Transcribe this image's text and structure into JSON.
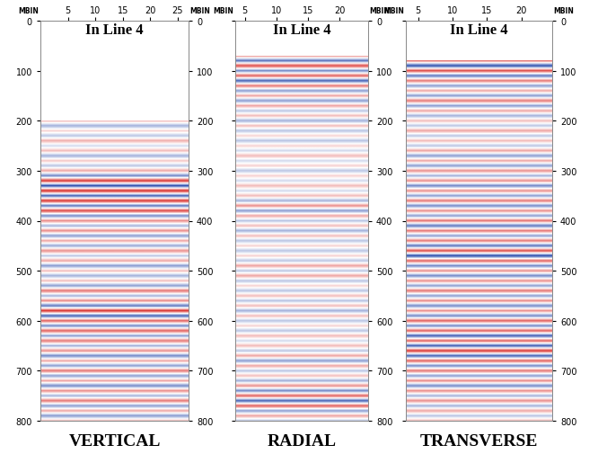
{
  "chart_data": [
    {
      "type": "heatmap",
      "title": "In Line 4",
      "xlabel": "VERTICAL",
      "axis_label": "MBIN",
      "xlim": [
        0,
        27
      ],
      "xticks": [
        5,
        10,
        15,
        20,
        25
      ],
      "ylim": [
        800,
        0
      ],
      "yticks": [
        0,
        100,
        200,
        300,
        400,
        500,
        600,
        700,
        800
      ],
      "y2lim": [
        800,
        0
      ],
      "y2ticks": [
        0,
        100,
        200,
        300,
        400,
        500,
        600,
        700,
        800
      ],
      "colors": [
        "#1a3fa8",
        "#ffffff",
        "#d8201c"
      ],
      "zlim": [
        -1,
        1
      ],
      "t": [
        0,
        10,
        20,
        30,
        40,
        50,
        60,
        70,
        80,
        90,
        100,
        110,
        120,
        130,
        140,
        150,
        160,
        170,
        180,
        190,
        200,
        210,
        220,
        230,
        240,
        250,
        260,
        270,
        280,
        290,
        300,
        310,
        320,
        330,
        340,
        350,
        360,
        370,
        380,
        390,
        400,
        410,
        420,
        430,
        440,
        450,
        460,
        470,
        480,
        490,
        500,
        510,
        520,
        530,
        540,
        550,
        560,
        570,
        580,
        590,
        600,
        610,
        620,
        630,
        640,
        650,
        660,
        670,
        680,
        690,
        700,
        710,
        720,
        730,
        740,
        750,
        760,
        770,
        780,
        790,
        800
      ],
      "amplitude": [
        null,
        null,
        null,
        null,
        null,
        null,
        null,
        null,
        null,
        null,
        null,
        null,
        null,
        null,
        null,
        null,
        null,
        null,
        null,
        null,
        0.3,
        -0.4,
        0.2,
        -0.3,
        0.35,
        -0.2,
        0.3,
        -0.4,
        0.25,
        -0.3,
        0.4,
        -0.6,
        0.9,
        -0.9,
        0.95,
        -0.8,
        0.9,
        -0.7,
        0.8,
        -0.6,
        0.5,
        -0.4,
        0.5,
        -0.5,
        0.4,
        -0.45,
        0.5,
        -0.3,
        0.4,
        -0.5,
        0.3,
        -0.4,
        0.3,
        -0.5,
        0.6,
        -0.4,
        0.5,
        -0.7,
        0.9,
        -0.8,
        0.7,
        -0.6,
        0.7,
        -0.5,
        0.6,
        -0.4,
        0.5,
        -0.6,
        0.4,
        -0.5,
        0.6,
        -0.5,
        0.4,
        -0.6,
        0.5,
        -0.4,
        0.6,
        -0.5,
        0.4,
        -0.5,
        0.3
      ]
    },
    {
      "type": "heatmap",
      "title": "In Line 4",
      "xlabel": "RADIAL",
      "axis_label": "MBIN",
      "xlim": [
        3.5,
        24.5
      ],
      "xticks": [
        5,
        10,
        15,
        20
      ],
      "ylim": [
        800,
        0
      ],
      "y2lim": [
        800,
        0
      ],
      "y2ticks": [
        0,
        100,
        200,
        300,
        400,
        500,
        600,
        700,
        800
      ],
      "colors": [
        "#1a3fa8",
        "#ffffff",
        "#d8201c"
      ],
      "zlim": [
        -1,
        1
      ],
      "t": [
        0,
        10,
        20,
        30,
        40,
        50,
        60,
        70,
        80,
        90,
        100,
        110,
        120,
        130,
        140,
        150,
        160,
        170,
        180,
        190,
        200,
        210,
        220,
        230,
        240,
        250,
        260,
        270,
        280,
        290,
        300,
        310,
        320,
        330,
        340,
        350,
        360,
        370,
        380,
        390,
        400,
        410,
        420,
        430,
        440,
        450,
        460,
        470,
        480,
        490,
        500,
        510,
        520,
        530,
        540,
        550,
        560,
        570,
        580,
        590,
        600,
        610,
        620,
        630,
        640,
        650,
        660,
        670,
        680,
        690,
        700,
        710,
        720,
        730,
        740,
        750,
        760,
        770,
        780,
        790,
        800
      ],
      "amplitude": [
        null,
        null,
        null,
        null,
        null,
        null,
        null,
        0.5,
        -0.7,
        0.8,
        -0.6,
        0.7,
        -0.8,
        0.6,
        -0.5,
        0.4,
        -0.5,
        0.4,
        -0.3,
        0.3,
        -0.4,
        0.3,
        -0.3,
        0.2,
        -0.3,
        0.2,
        -0.2,
        0.3,
        -0.2,
        0.2,
        -0.3,
        0.2,
        -0.2,
        0.3,
        -0.2,
        0.3,
        -0.4,
        0.5,
        -0.5,
        0.4,
        -0.3,
        0.3,
        -0.4,
        0.3,
        -0.3,
        0.2,
        -0.3,
        0.2,
        -0.3,
        0.4,
        -0.3,
        0.4,
        -0.3,
        0.2,
        -0.3,
        0.3,
        -0.3,
        0.3,
        -0.4,
        0.3,
        -0.3,
        0.2,
        -0.3,
        0.3,
        -0.2,
        0.3,
        -0.3,
        0.4,
        -0.5,
        0.4,
        -0.3,
        0.3,
        -0.4,
        0.5,
        -0.6,
        0.7,
        -0.8,
        0.7,
        -0.5,
        0.4,
        -0.3
      ]
    },
    {
      "type": "heatmap",
      "title": "In Line 4",
      "xlabel": "TRANSVERSE",
      "axis_label": "MBIN",
      "xlim": [
        3.2,
        24.5
      ],
      "xticks": [
        5,
        10,
        15,
        20
      ],
      "ylim": [
        800,
        0
      ],
      "y2lim": [
        800,
        0
      ],
      "y2ticks": [
        0,
        100,
        200,
        300,
        400,
        500,
        600,
        700,
        800
      ],
      "colors": [
        "#1a3fa8",
        "#ffffff",
        "#d8201c"
      ],
      "zlim": [
        -1,
        1
      ],
      "t": [
        0,
        10,
        20,
        30,
        40,
        50,
        60,
        70,
        80,
        90,
        100,
        110,
        120,
        130,
        140,
        150,
        160,
        170,
        180,
        190,
        200,
        210,
        220,
        230,
        240,
        250,
        260,
        270,
        280,
        290,
        300,
        310,
        320,
        330,
        340,
        350,
        360,
        370,
        380,
        390,
        400,
        410,
        420,
        430,
        440,
        450,
        460,
        470,
        480,
        490,
        500,
        510,
        520,
        530,
        540,
        550,
        560,
        570,
        580,
        590,
        600,
        610,
        620,
        630,
        640,
        650,
        660,
        670,
        680,
        690,
        700,
        710,
        720,
        730,
        740,
        750,
        760,
        770,
        780,
        790,
        800
      ],
      "amplitude": [
        null,
        null,
        null,
        null,
        null,
        null,
        null,
        null,
        0.6,
        -0.9,
        0.8,
        -0.7,
        0.6,
        -0.5,
        0.4,
        -0.5,
        0.6,
        -0.5,
        0.4,
        -0.4,
        0.3,
        -0.3,
        0.4,
        -0.3,
        0.3,
        -0.3,
        0.4,
        -0.5,
        0.4,
        -0.5,
        0.5,
        -0.4,
        0.5,
        -0.6,
        0.5,
        -0.5,
        0.6,
        -0.6,
        0.5,
        -0.5,
        0.6,
        -0.7,
        0.6,
        -0.5,
        0.6,
        -0.7,
        0.8,
        -0.9,
        0.7,
        -0.6,
        0.5,
        -0.6,
        0.5,
        -0.5,
        0.6,
        -0.5,
        0.5,
        -0.6,
        0.5,
        -0.6,
        0.7,
        -0.6,
        0.7,
        -0.8,
        0.7,
        -0.8,
        0.9,
        -0.8,
        0.7,
        -0.6,
        0.6,
        -0.5,
        0.5,
        -0.6,
        0.5,
        -0.4,
        0.5,
        -0.4,
        0.4,
        -0.3,
        0.3
      ]
    }
  ]
}
